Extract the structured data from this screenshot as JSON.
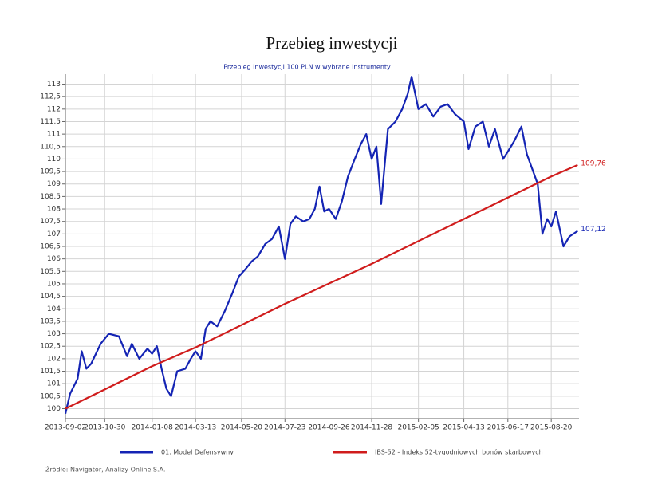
{
  "chart_data": {
    "type": "line",
    "title": "Przebieg inwestycji",
    "subtitle": "Przebieg inwestycji 100 PLN w wybrane instrumenty",
    "source": "Źródło: Navigator, Analizy Online S.A.",
    "grid": true,
    "xlim": [
      "2013-09-02",
      "2015-09-30"
    ],
    "xticks": [
      "2013-09-02",
      "2013-10-30",
      "2014-01-08",
      "2014-03-13",
      "2014-05-20",
      "2014-07-23",
      "2014-09-26",
      "2014-11-28",
      "2015-02-05",
      "2015-04-13",
      "2015-06-17",
      "2015-08-20"
    ],
    "ylim": [
      99.6,
      113.4
    ],
    "yticks": [
      100,
      {
        "value": 100.5,
        "label": "100,5"
      },
      101,
      {
        "value": 101.5,
        "label": "101,5"
      },
      102,
      {
        "value": 102.5,
        "label": "102,5"
      },
      103,
      {
        "value": 103.5,
        "label": "103,5"
      },
      104,
      {
        "value": 104.5,
        "label": "104,5"
      },
      105,
      {
        "value": 105.5,
        "label": "105,5"
      },
      106,
      {
        "value": 106.5,
        "label": "106,5"
      },
      107,
      {
        "value": 107.5,
        "label": "107,5"
      },
      108,
      {
        "value": 108.5,
        "label": "108,5"
      },
      109,
      {
        "value": 109.5,
        "label": "109,5"
      },
      110,
      {
        "value": 110.5,
        "label": "110,5"
      },
      111,
      {
        "value": 111.5,
        "label": "111,5"
      },
      112,
      {
        "value": 112.5,
        "label": "112,5"
      },
      113
    ],
    "series": [
      {
        "name": "01. Model Defensywny",
        "color": "#1424b4",
        "x": [
          "2013-09-02",
          "2013-09-09",
          "2013-09-20",
          "2013-09-26",
          "2013-10-03",
          "2013-10-10",
          "2013-10-24",
          "2013-11-05",
          "2013-11-20",
          "2013-12-02",
          "2013-12-09",
          "2013-12-20",
          "2014-01-01",
          "2014-01-08",
          "2014-01-15",
          "2014-01-22",
          "2014-01-29",
          "2014-02-05",
          "2014-02-14",
          "2014-02-26",
          "2014-03-06",
          "2014-03-13",
          "2014-03-21",
          "2014-03-28",
          "2014-04-04",
          "2014-04-14",
          "2014-04-25",
          "2014-05-06",
          "2014-05-16",
          "2014-05-26",
          "2014-06-04",
          "2014-06-13",
          "2014-06-24",
          "2014-07-04",
          "2014-07-14",
          "2014-07-23",
          "2014-07-31",
          "2014-08-08",
          "2014-08-19",
          "2014-08-28",
          "2014-09-05",
          "2014-09-12",
          "2014-09-19",
          "2014-09-26",
          "2014-10-06",
          "2014-10-15",
          "2014-10-24",
          "2014-11-03",
          "2014-11-12",
          "2014-11-20",
          "2014-11-28",
          "2014-12-05",
          "2014-12-12",
          "2014-12-22",
          "2015-01-02",
          "2015-01-12",
          "2015-01-20",
          "2015-01-26",
          "2015-02-05",
          "2015-02-16",
          "2015-02-27",
          "2015-03-10",
          "2015-03-20",
          "2015-03-31",
          "2015-04-13",
          "2015-04-20",
          "2015-04-30",
          "2015-05-11",
          "2015-05-20",
          "2015-05-29",
          "2015-06-10",
          "2015-06-17",
          "2015-06-26",
          "2015-07-07",
          "2015-07-15",
          "2015-07-23",
          "2015-07-31",
          "2015-08-07",
          "2015-08-14",
          "2015-08-20",
          "2015-08-27",
          "2015-09-07",
          "2015-09-16",
          "2015-09-28"
        ],
        "values": [
          99.8,
          100.6,
          101.2,
          102.3,
          101.6,
          101.8,
          102.6,
          103.0,
          102.9,
          102.1,
          102.6,
          102.0,
          102.4,
          102.2,
          102.5,
          101.6,
          100.8,
          100.5,
          101.5,
          101.6,
          102.0,
          102.3,
          102.0,
          103.2,
          103.5,
          103.3,
          103.9,
          104.6,
          105.3,
          105.6,
          105.9,
          106.1,
          106.6,
          106.8,
          107.3,
          106.0,
          107.4,
          107.7,
          107.5,
          107.6,
          108.0,
          108.9,
          107.9,
          108.0,
          107.6,
          108.3,
          109.3,
          110.0,
          110.6,
          111.0,
          110.0,
          110.5,
          108.2,
          111.2,
          111.5,
          112.0,
          112.6,
          113.3,
          112.0,
          112.2,
          111.7,
          112.1,
          112.2,
          111.8,
          111.5,
          110.4,
          111.3,
          111.5,
          110.5,
          111.2,
          110.0,
          110.3,
          110.7,
          111.3,
          110.2,
          109.6,
          109.0,
          107.0,
          107.6,
          107.3,
          107.9,
          106.5,
          106.9,
          107.12
        ],
        "value_labels": [
          null,
          null,
          null,
          null,
          null,
          null,
          null,
          null,
          null,
          null,
          null,
          null,
          null,
          null,
          null,
          null,
          null,
          null,
          null,
          null,
          null,
          null,
          null,
          null,
          null,
          null,
          null,
          null,
          null,
          null,
          null,
          null,
          null,
          null,
          null,
          null,
          null,
          null,
          null,
          null,
          null,
          null,
          null,
          null,
          null,
          null,
          null,
          null,
          null,
          null,
          null,
          null,
          null,
          null,
          null,
          null,
          null,
          null,
          null,
          null,
          null,
          null,
          null,
          null,
          null,
          null,
          null,
          null,
          null,
          null,
          null,
          null,
          null,
          null,
          null,
          null,
          null,
          null,
          null,
          null,
          null,
          null,
          null,
          "107,12"
        ]
      },
      {
        "name": "IBS-52 - Indeks 52-tygodniowych bonów skarbowych",
        "color": "#d01c1c",
        "x": [
          "2013-09-02",
          "2014-01-08",
          "2014-03-13",
          "2014-07-23",
          "2014-11-28",
          "2015-04-13",
          "2015-08-20",
          "2015-09-28"
        ],
        "values": [
          100.0,
          101.7,
          102.45,
          104.2,
          105.8,
          107.6,
          109.3,
          109.76
        ],
        "value_labels": [
          null,
          null,
          null,
          null,
          null,
          null,
          null,
          "109,76"
        ]
      }
    ]
  }
}
